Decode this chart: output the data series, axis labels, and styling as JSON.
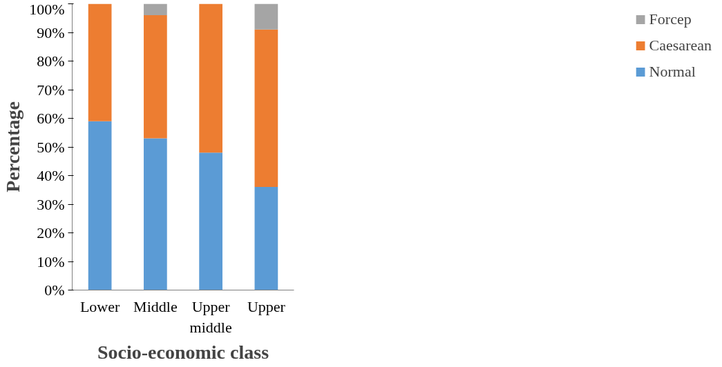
{
  "chart_data": {
    "type": "bar",
    "stacked": true,
    "xlabel": "Socio-economic class",
    "ylabel": "Percentage",
    "categories": [
      "Lower",
      "Middle",
      "Upper middle",
      "Upper"
    ],
    "series": [
      {
        "name": "Normal",
        "color": "#5b9bd5",
        "values": [
          59,
          53,
          48,
          36
        ]
      },
      {
        "name": "Caesarean",
        "color": "#ed7d31",
        "values": [
          41,
          43,
          52,
          55
        ]
      },
      {
        "name": "Forcep",
        "color": "#a5a5a5",
        "values": [
          0,
          4,
          0,
          9
        ]
      }
    ],
    "ylim": [
      0,
      100
    ],
    "yticks": [
      {
        "value": 0,
        "label": "0%"
      },
      {
        "value": 10,
        "label": "10%"
      },
      {
        "value": 20,
        "label": "20%"
      },
      {
        "value": 30,
        "label": "30%"
      },
      {
        "value": 40,
        "label": "40%"
      },
      {
        "value": 50,
        "label": "50%"
      },
      {
        "value": 60,
        "label": "60%"
      },
      {
        "value": 70,
        "label": "70%"
      },
      {
        "value": 80,
        "label": "80%"
      },
      {
        "value": 90,
        "label": "90%"
      },
      {
        "value": 100,
        "label": "100%"
      }
    ],
    "grid": false,
    "legend": "right"
  }
}
